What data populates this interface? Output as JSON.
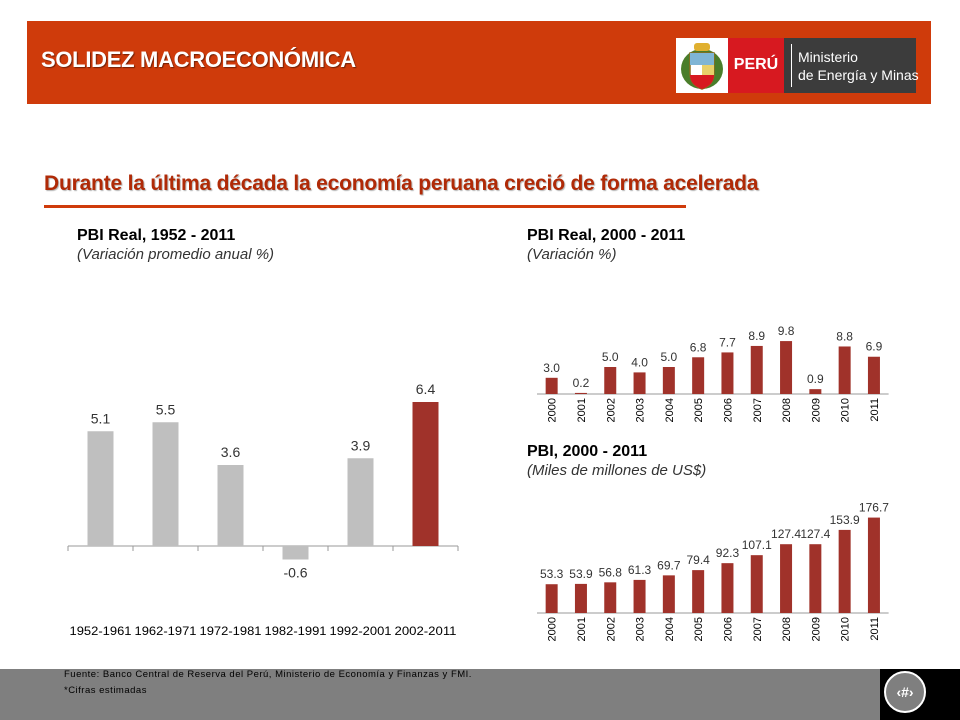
{
  "header": {
    "title": "SOLIDEZ MACROECONÓMICA",
    "logo_country": "PERÚ",
    "logo_ministry_line1": "Ministerio",
    "logo_ministry_line2": "de Energía y Minas"
  },
  "subtitle": "Durante la última década la economía peruana creció de forma acelerada",
  "colors": {
    "accent": "#cf3b0b",
    "highlight_bar": "#a0322a",
    "gray_bar": "#bfbfbf",
    "footer": "#7f7f7f"
  },
  "footer": {
    "source": "Fuente: Banco Central de Reserva del Perú, Ministerio de Economía y Finanzas y FMI.",
    "note": "*Cifras estimadas",
    "page_number": "‹#›"
  },
  "chart_data": [
    {
      "type": "bar",
      "title": "PBI Real, 1952 - 2011",
      "subtitle": "(Variación promedio anual %)",
      "categories": [
        "1952-1961",
        "1962-1971",
        "1972-1981",
        "1982-1991",
        "1992-2001",
        "2002-2011"
      ],
      "values": [
        5.1,
        5.5,
        3.6,
        -0.6,
        3.9,
        6.4
      ],
      "labels": [
        "5.1",
        "5.5",
        "3.6",
        "-0.6",
        "3.9",
        "6.4"
      ],
      "highlight_index": 5
    },
    {
      "type": "bar",
      "title": "PBI Real, 2000 - 2011",
      "subtitle": "(Variación %)",
      "categories": [
        "2000",
        "2001",
        "2002",
        "2003",
        "2004",
        "2005",
        "2006",
        "2007",
        "2008",
        "2009",
        "2010",
        "2011"
      ],
      "values": [
        3.0,
        0.2,
        5.0,
        4.0,
        5.0,
        6.8,
        7.7,
        8.9,
        9.8,
        0.9,
        8.8,
        6.9
      ],
      "labels": [
        "3.0",
        "0.2",
        "5.0",
        "4.0",
        "5.0",
        "6.8",
        "7.7",
        "8.9",
        "9.8",
        "0.9",
        "8.8",
        "6.9"
      ]
    },
    {
      "type": "bar",
      "title": "PBI, 2000 - 2011",
      "subtitle": "(Miles de millones de US$)",
      "categories": [
        "2000",
        "2001",
        "2002",
        "2003",
        "2004",
        "2005",
        "2006",
        "2007",
        "2008",
        "2009",
        "2010",
        "2011"
      ],
      "values": [
        53.3,
        53.9,
        56.8,
        61.3,
        69.7,
        79.4,
        92.3,
        107.1,
        127.4,
        127.4,
        153.9,
        176.7
      ],
      "labels": [
        "53.3",
        "53.9",
        "56.8",
        "61.3",
        "69.7",
        "79.4",
        "92.3",
        "107.1",
        "127.4",
        "127.4",
        "153.9",
        "176.7"
      ]
    }
  ]
}
